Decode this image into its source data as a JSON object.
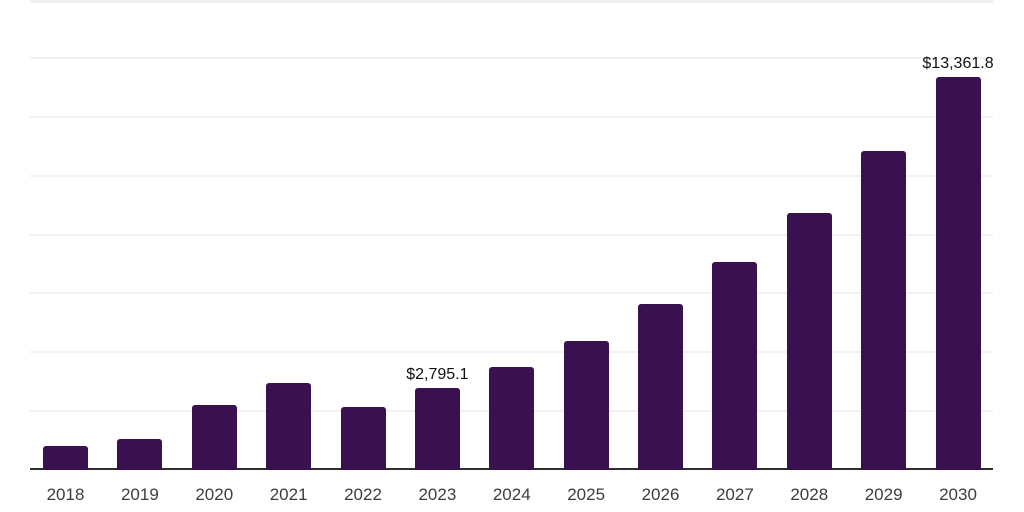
{
  "chart": {
    "background_color": "#ffffff",
    "top_border_color": "#f0f0f2"
  },
  "chart_data": {
    "type": "bar",
    "title": "",
    "xlabel": "",
    "ylabel": "",
    "legend": "none",
    "grid": "horizontal",
    "categories": [
      "2018",
      "2019",
      "2020",
      "2021",
      "2022",
      "2023",
      "2024",
      "2025",
      "2026",
      "2027",
      "2028",
      "2029",
      "2030"
    ],
    "values": [
      818,
      1057,
      2216,
      2966,
      2147,
      2795.1,
      3511,
      4397,
      5624,
      7056,
      8726,
      10839,
      13361.8
    ],
    "data_labels": [
      {
        "category": "2023",
        "text": "$2,795.1"
      },
      {
        "category": "2030",
        "text": "$13,361.8"
      }
    ],
    "ylim": [
      0,
      14000
    ],
    "gridline_values": [
      2000,
      4000,
      6000,
      8000,
      10000,
      12000,
      14000
    ],
    "bar_color": "#38114e",
    "axis_line_color": "#2e2e2e",
    "gridline_color": "#f1f1f2",
    "tick_label_color": "#3d3d3d",
    "data_label_color": "#111111"
  }
}
